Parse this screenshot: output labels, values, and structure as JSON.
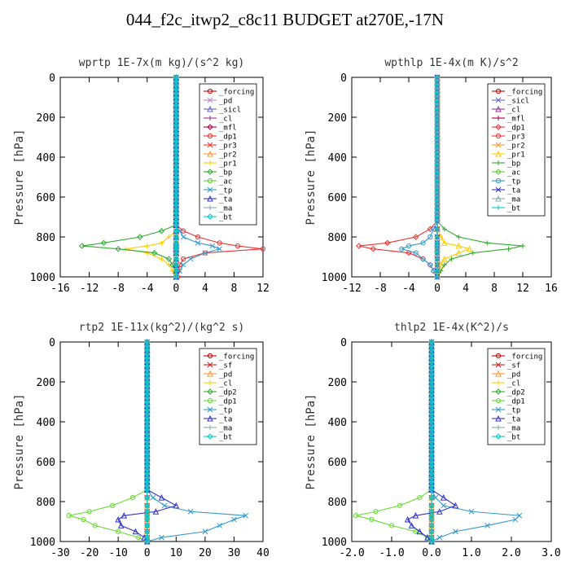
{
  "figure": {
    "title": "044_f2c_itwp2_c8c11  BUDGET at270E,-17N"
  },
  "chart_data": [
    {
      "type": "line",
      "title": "wprtp  1E-7x(m kg)/(s^2 kg)",
      "ylabel": "Pressure [hPa]",
      "xlim": [
        -16,
        12
      ],
      "ylim": [
        1000,
        0
      ],
      "xticks": [
        "-16",
        "-12",
        "-8",
        "-4",
        "0",
        "4",
        "8",
        "12"
      ],
      "yticks": [
        "0",
        "200",
        "400",
        "600",
        "800",
        "1000"
      ],
      "legend_position": "top-right",
      "y": [
        740,
        770,
        800,
        830,
        845,
        860,
        880,
        910,
        940,
        970,
        1000
      ],
      "series": [
        {
          "name": "_forcing",
          "color": "#cc0000",
          "values": [
            0,
            0,
            0,
            0,
            0,
            0,
            0,
            0,
            0,
            0,
            0
          ]
        },
        {
          "name": "_pd",
          "color": "#bb88cc",
          "values": [
            0,
            0,
            0,
            0,
            0,
            0,
            0,
            0,
            0,
            0,
            0
          ]
        },
        {
          "name": "_sicl",
          "color": "#6666cc",
          "values": [
            0,
            0,
            0,
            0,
            0,
            0,
            0,
            0,
            0,
            0,
            0
          ]
        },
        {
          "name": "_cl",
          "color": "#993399",
          "values": [
            0,
            0,
            0,
            0,
            0,
            0,
            0,
            0,
            0,
            0,
            0
          ]
        },
        {
          "name": "_mfl",
          "color": "#aa0044",
          "values": [
            0,
            0,
            0,
            0,
            0,
            0,
            0,
            0,
            0,
            0,
            0
          ]
        },
        {
          "name": "_dp1",
          "color": "#ee3333",
          "values": [
            0,
            1,
            3,
            6,
            8.5,
            12,
            4,
            1,
            0.5,
            0.3,
            0.2
          ]
        },
        {
          "name": "_pr3",
          "color": "#ff3333",
          "values": [
            0,
            0,
            0,
            0,
            0,
            0,
            0,
            0,
            0,
            0,
            0
          ]
        },
        {
          "name": "_pr2",
          "color": "#ff9933",
          "values": [
            0,
            0,
            0,
            0,
            0,
            0,
            0,
            0,
            0,
            0,
            0
          ]
        },
        {
          "name": "_pr1",
          "color": "#ffcc00",
          "values": [
            0,
            0,
            -1,
            -2,
            -4,
            -7,
            -4,
            -2,
            -1,
            -0.5,
            0
          ]
        },
        {
          "name": "_bp",
          "color": "#33aa33",
          "values": [
            0,
            -2,
            -5,
            -10,
            -13,
            -8,
            -3,
            -1,
            -0.5,
            0,
            0
          ]
        },
        {
          "name": "_ac",
          "color": "#66cc33",
          "values": [
            0,
            0,
            0,
            0,
            0,
            0,
            0,
            0,
            0,
            0,
            0
          ]
        },
        {
          "name": "_tp",
          "color": "#3399cc",
          "values": [
            0,
            0.5,
            1,
            3,
            5,
            6,
            4,
            2,
            1,
            0.5,
            0
          ]
        },
        {
          "name": "_ta",
          "color": "#3333cc",
          "values": [
            0,
            0,
            0,
            0,
            0,
            0,
            0,
            0,
            0,
            0,
            0
          ]
        },
        {
          "name": "_ma",
          "color": "#88aaaa",
          "values": [
            0,
            0,
            0,
            0,
            0,
            0,
            0,
            0,
            0,
            0,
            0
          ]
        },
        {
          "name": "_bt",
          "color": "#00cccc",
          "values": [
            0,
            0,
            0,
            0,
            0,
            0,
            0,
            0,
            0,
            0,
            0
          ]
        }
      ]
    },
    {
      "type": "line",
      "title": "wpthlp  1E-4x(m K)/s^2",
      "ylabel": "Pressure [hPa]",
      "xlim": [
        -12,
        16
      ],
      "ylim": [
        1000,
        0
      ],
      "xticks": [
        "-12",
        "-8",
        "-4",
        "0",
        "4",
        "8",
        "12",
        "16"
      ],
      "yticks": [
        "0",
        "200",
        "400",
        "600",
        "800",
        "1000"
      ],
      "legend_position": "top-right",
      "y": [
        720,
        760,
        800,
        830,
        845,
        860,
        880,
        910,
        940,
        970,
        1000
      ],
      "series": [
        {
          "name": "_forcing",
          "color": "#cc0000",
          "values": [
            0,
            0,
            0,
            0,
            0,
            0,
            0,
            0,
            0,
            0,
            0
          ]
        },
        {
          "name": "_sicl",
          "color": "#6666cc",
          "values": [
            0,
            0,
            0,
            0,
            0,
            0,
            0,
            0,
            0,
            0,
            0
          ]
        },
        {
          "name": "_cl",
          "color": "#993399",
          "values": [
            0,
            0,
            0,
            0,
            0,
            0,
            0,
            0,
            0,
            0,
            0
          ]
        },
        {
          "name": "_mfl",
          "color": "#aa0044",
          "values": [
            0,
            0,
            0,
            0,
            0,
            0,
            0,
            0,
            0,
            0,
            0
          ]
        },
        {
          "name": "_dp1",
          "color": "#ee3333",
          "values": [
            0,
            -1,
            -3,
            -7,
            -11,
            -9,
            -4,
            -2,
            -1,
            -0.5,
            0
          ]
        },
        {
          "name": "_pr3",
          "color": "#ff3333",
          "values": [
            0,
            0,
            0,
            0,
            0,
            0,
            0,
            0,
            0,
            0,
            0
          ]
        },
        {
          "name": "_pr2",
          "color": "#ff9933",
          "values": [
            0,
            0,
            0,
            0,
            0,
            0,
            0,
            0,
            0,
            0,
            0
          ]
        },
        {
          "name": "_pr1",
          "color": "#ffcc00",
          "values": [
            0,
            0,
            0.5,
            1,
            3,
            4.5,
            3,
            1,
            0.5,
            0.2,
            0
          ]
        },
        {
          "name": "_bp",
          "color": "#33aa33",
          "values": [
            0,
            1,
            3,
            7,
            12,
            10,
            5,
            2,
            1,
            0.5,
            0
          ]
        },
        {
          "name": "_ac",
          "color": "#66cc33",
          "values": [
            0,
            0,
            0,
            0,
            0,
            0,
            0,
            0,
            0,
            0,
            0
          ]
        },
        {
          "name": "_tp",
          "color": "#3399cc",
          "values": [
            0,
            -0.5,
            -1,
            -2,
            -4,
            -5,
            -3,
            -2,
            -1,
            -0.5,
            0
          ]
        },
        {
          "name": "_ta",
          "color": "#3333cc",
          "values": [
            0,
            0,
            0,
            0,
            0,
            0,
            0,
            0,
            0,
            0,
            0
          ]
        },
        {
          "name": "_ma",
          "color": "#88aaaa",
          "values": [
            0,
            0,
            0,
            0,
            0,
            0,
            0,
            0,
            0,
            0,
            0
          ]
        },
        {
          "name": "_bt",
          "color": "#00cccc",
          "values": [
            0,
            0,
            0,
            0,
            0,
            0,
            0,
            0,
            0,
            0,
            0
          ]
        }
      ]
    },
    {
      "type": "line",
      "title": "rtp2  1E-11x(kg^2)/(kg^2 s)",
      "ylabel": "Pressure [hPa]",
      "xlim": [
        -30,
        40
      ],
      "ylim": [
        1000,
        0
      ],
      "xticks": [
        "-30",
        "-20",
        "-10",
        "0",
        "10",
        "20",
        "30",
        "40"
      ],
      "yticks": [
        "0",
        "200",
        "400",
        "600",
        "800",
        "1000"
      ],
      "legend_position": "top-right",
      "y": [
        740,
        780,
        820,
        850,
        870,
        890,
        920,
        950,
        980,
        1000
      ],
      "series": [
        {
          "name": "_forcing",
          "color": "#cc0000",
          "values": [
            0,
            0,
            0,
            0,
            0,
            0,
            0,
            0,
            0,
            0
          ]
        },
        {
          "name": "_sf",
          "color": "#cc2222",
          "values": [
            0,
            0,
            0,
            0,
            0,
            0,
            0,
            0,
            0,
            0
          ]
        },
        {
          "name": "_pd",
          "color": "#ff9933",
          "values": [
            0,
            0,
            0,
            0,
            0,
            0,
            0,
            0,
            0,
            0
          ]
        },
        {
          "name": "_cl",
          "color": "#ffcc00",
          "values": [
            0,
            0,
            0,
            0,
            0,
            0,
            0,
            0,
            0,
            0
          ]
        },
        {
          "name": "_dp2",
          "color": "#33aa33",
          "values": [
            0,
            0,
            0,
            0,
            0,
            0,
            0,
            0,
            0,
            0
          ]
        },
        {
          "name": "_dp1",
          "color": "#66dd33",
          "values": [
            0,
            -5,
            -12,
            -20,
            -27,
            -22,
            -18,
            -10,
            -3,
            0
          ]
        },
        {
          "name": "_tp",
          "color": "#3399cc",
          "values": [
            0,
            2,
            6,
            15,
            34,
            30,
            25,
            20,
            5,
            0
          ]
        },
        {
          "name": "_ta",
          "color": "#3333cc",
          "values": [
            0,
            5,
            10,
            3,
            -8,
            -10,
            -9,
            -4,
            -1,
            0
          ]
        },
        {
          "name": "_ma",
          "color": "#88aaaa",
          "values": [
            0,
            0,
            0,
            0,
            0,
            0,
            0,
            0,
            0,
            0
          ]
        },
        {
          "name": "_bt",
          "color": "#00cccc",
          "values": [
            0,
            0,
            0,
            0,
            0,
            0,
            0,
            0,
            0,
            0
          ]
        }
      ]
    },
    {
      "type": "line",
      "title": "thlp2  1E-4x(K^2)/s",
      "ylabel": "Pressure [hPa]",
      "xlim": [
        -2.0,
        3.0
      ],
      "ylim": [
        1000,
        0
      ],
      "xticks": [
        "-2.0",
        "-1.0",
        "0.0",
        "1.0",
        "2.0",
        "3.0"
      ],
      "yticks": [
        "0",
        "200",
        "400",
        "600",
        "800",
        "1000"
      ],
      "legend_position": "top-right",
      "y": [
        740,
        780,
        820,
        850,
        870,
        890,
        920,
        950,
        980,
        1000
      ],
      "series": [
        {
          "name": "_forcing",
          "color": "#cc0000",
          "values": [
            0,
            0,
            0,
            0,
            0,
            0,
            0,
            0,
            0,
            0
          ]
        },
        {
          "name": "_sf",
          "color": "#cc2222",
          "values": [
            0,
            0,
            0,
            0,
            0,
            0,
            0,
            0,
            0,
            0
          ]
        },
        {
          "name": "_pd",
          "color": "#ff9933",
          "values": [
            0,
            0,
            0,
            0,
            0,
            0,
            0,
            0,
            0,
            0
          ]
        },
        {
          "name": "_cl",
          "color": "#ffcc00",
          "values": [
            0,
            0,
            0,
            0,
            0,
            0,
            0,
            0,
            0,
            0
          ]
        },
        {
          "name": "_dp2",
          "color": "#33aa33",
          "values": [
            0,
            0,
            0,
            0,
            0,
            0,
            0,
            0,
            0,
            0
          ]
        },
        {
          "name": "_dp1",
          "color": "#66dd33",
          "values": [
            0,
            -0.3,
            -0.8,
            -1.4,
            -1.9,
            -1.5,
            -1.0,
            -0.4,
            -0.1,
            0
          ]
        },
        {
          "name": "_tp",
          "color": "#3399cc",
          "values": [
            0,
            0.1,
            0.3,
            1.0,
            2.2,
            2.1,
            1.4,
            0.6,
            0.2,
            0
          ]
        },
        {
          "name": "_ta",
          "color": "#3333cc",
          "values": [
            0,
            0.3,
            0.6,
            0.2,
            -0.4,
            -0.6,
            -0.5,
            -0.3,
            -0.1,
            0
          ]
        },
        {
          "name": "_ma",
          "color": "#88aaaa",
          "values": [
            0,
            0,
            0,
            0,
            0,
            0,
            0,
            0,
            0,
            0
          ]
        },
        {
          "name": "_bt",
          "color": "#00cccc",
          "values": [
            0,
            0,
            0,
            0,
            0,
            0,
            0,
            0,
            0,
            0
          ]
        }
      ]
    }
  ]
}
